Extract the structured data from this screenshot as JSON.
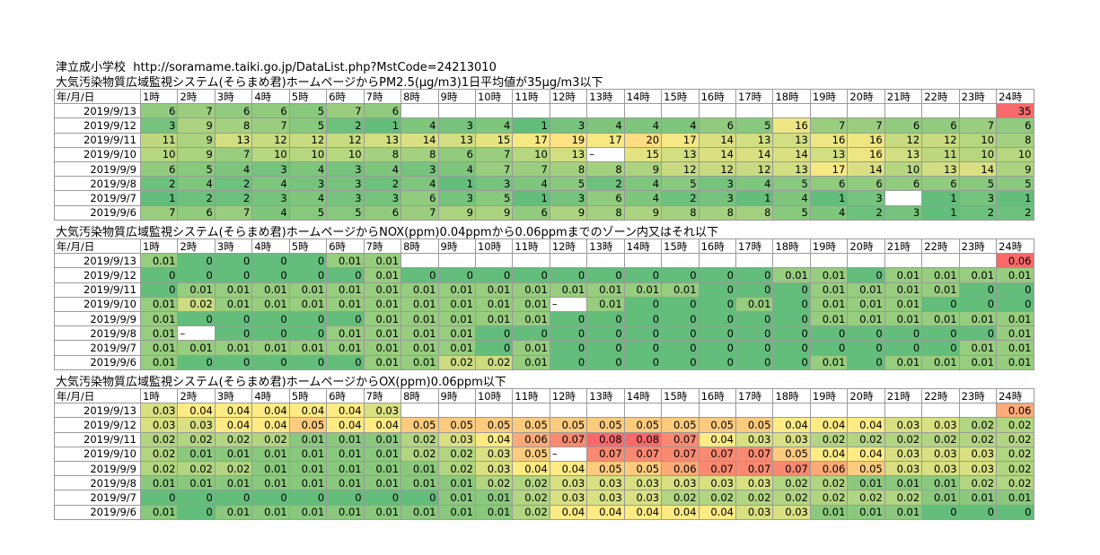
{
  "header": {
    "school": "津立成小学校",
    "url": "http://soramame.taiki.go.jp/DataList.php?MstCode=24213010"
  },
  "columns": {
    "date_header": "年/月/日",
    "hours": [
      "1時",
      "2時",
      "3時",
      "4時",
      "5時",
      "6時",
      "7時",
      "8時",
      "9時",
      "10時",
      "11時",
      "12時",
      "13時",
      "14時",
      "15時",
      "16時",
      "17時",
      "18時",
      "19時",
      "20時",
      "21時",
      "22時",
      "23時",
      "24時"
    ]
  },
  "sections": [
    {
      "title": "大気汚染物質広域監視システム(そらまめ君)ホームページからPM2.5(μg/m3)1日平均値が35μg/m3以下",
      "kind": "pm25",
      "rows": [
        {
          "date": "2019/9/13",
          "values": [
            "6",
            "7",
            "6",
            "6",
            "5",
            "7",
            "6",
            "",
            "",
            "",
            "",
            "",
            "",
            "",
            "",
            "",
            "",
            "",
            "",
            "",
            "",
            "",
            "",
            "35"
          ]
        },
        {
          "date": "2019/9/12",
          "values": [
            "3",
            "9",
            "8",
            "7",
            "5",
            "2",
            "1",
            "4",
            "3",
            "4",
            "1",
            "3",
            "4",
            "4",
            "4",
            "6",
            "5",
            "16",
            "7",
            "7",
            "6",
            "6",
            "7",
            "6"
          ]
        },
        {
          "date": "2019/9/11",
          "values": [
            "11",
            "9",
            "13",
            "12",
            "12",
            "12",
            "13",
            "14",
            "13",
            "15",
            "17",
            "19",
            "17",
            "20",
            "17",
            "14",
            "13",
            "13",
            "16",
            "16",
            "12",
            "12",
            "10",
            "8"
          ]
        },
        {
          "date": "2019/9/10",
          "values": [
            "10",
            "9",
            "7",
            "10",
            "10",
            "10",
            "8",
            "8",
            "6",
            "7",
            "10",
            "13",
            "–",
            "15",
            "13",
            "14",
            "14",
            "14",
            "13",
            "16",
            "13",
            "11",
            "10",
            "10"
          ]
        },
        {
          "date": "2019/9/9",
          "values": [
            "6",
            "5",
            "4",
            "3",
            "4",
            "3",
            "4",
            "3",
            "4",
            "7",
            "7",
            "8",
            "8",
            "9",
            "12",
            "12",
            "12",
            "13",
            "17",
            "14",
            "10",
            "13",
            "14",
            "9"
          ]
        },
        {
          "date": "2019/9/8",
          "values": [
            "2",
            "4",
            "2",
            "4",
            "3",
            "3",
            "2",
            "4",
            "1",
            "3",
            "4",
            "5",
            "2",
            "4",
            "5",
            "3",
            "4",
            "5",
            "6",
            "6",
            "6",
            "6",
            "5",
            "5"
          ]
        },
        {
          "date": "2019/9/7",
          "values": [
            "1",
            "2",
            "2",
            "3",
            "4",
            "3",
            "3",
            "6",
            "3",
            "5",
            "1",
            "3",
            "6",
            "4",
            "2",
            "3",
            "1",
            "4",
            "1",
            "3",
            "",
            "1",
            "3",
            "1"
          ]
        },
        {
          "date": "2019/9/6",
          "values": [
            "7",
            "6",
            "7",
            "4",
            "5",
            "5",
            "6",
            "7",
            "9",
            "9",
            "6",
            "9",
            "8",
            "9",
            "8",
            "8",
            "8",
            "5",
            "4",
            "2",
            "3",
            "1",
            "2",
            "2"
          ]
        }
      ]
    },
    {
      "title": "大気汚染物質広域監視システム(そらまめ君)ホームページからNOX(ppm)0.04ppmから0.06ppmまでのゾーン内又はそれ以下",
      "kind": "nox",
      "rows": [
        {
          "date": "2019/9/13",
          "values": [
            "0.01",
            "0",
            "0",
            "0",
            "0",
            "0.01",
            "0.01",
            "",
            "",
            "",
            "",
            "",
            "",
            "",
            "",
            "",
            "",
            "",
            "",
            "",
            "",
            "",
            "",
            "0.06"
          ]
        },
        {
          "date": "2019/9/12",
          "values": [
            "0",
            "0",
            "0",
            "0",
            "0",
            "0",
            "0.01",
            "0",
            "0",
            "0",
            "0",
            "0",
            "0",
            "0",
            "0",
            "0",
            "0",
            "0.01",
            "0.01",
            "0",
            "0.01",
            "0.01",
            "0.01",
            "0.01"
          ]
        },
        {
          "date": "2019/9/11",
          "values": [
            "0",
            "0.01",
            "0.01",
            "0.01",
            "0.01",
            "0.01",
            "0.01",
            "0.01",
            "0.01",
            "0.01",
            "0.01",
            "0.01",
            "0.01",
            "0.01",
            "0.01",
            "0",
            "0",
            "0",
            "0.01",
            "0.01",
            "0.01",
            "0.01",
            "0",
            "0"
          ]
        },
        {
          "date": "2019/9/10",
          "values": [
            "0.01",
            "0.02",
            "0.01",
            "0.01",
            "0.01",
            "0.01",
            "0.01",
            "0.01",
            "0.01",
            "0.01",
            "0.01",
            "–",
            "0.01",
            "0",
            "0",
            "0",
            "0.01",
            "0",
            "0.01",
            "0.01",
            "0.01",
            "0",
            "0",
            "0"
          ]
        },
        {
          "date": "2019/9/9",
          "values": [
            "0.01",
            "0",
            "0",
            "0",
            "0",
            "0",
            "0.01",
            "0.01",
            "0.01",
            "0.01",
            "0.01",
            "0",
            "0",
            "0",
            "0",
            "0",
            "0",
            "0",
            "0.01",
            "0.01",
            "0.01",
            "0.01",
            "0.01",
            "0.01"
          ]
        },
        {
          "date": "2019/9/8",
          "values": [
            "0.01",
            "–",
            "0",
            "0",
            "0",
            "0.01",
            "0.01",
            "0.01",
            "0.01",
            "0",
            "0",
            "0",
            "0",
            "0",
            "0",
            "0",
            "0",
            "0",
            "0",
            "0",
            "0",
            "0",
            "0",
            "0.01"
          ]
        },
        {
          "date": "2019/9/7",
          "values": [
            "0.01",
            "0.01",
            "0.01",
            "0.01",
            "0.01",
            "0.01",
            "0.01",
            "0.01",
            "0.01",
            "0",
            "0.01",
            "0",
            "0",
            "0",
            "0",
            "0",
            "0",
            "0",
            "0",
            "0",
            "0",
            "0",
            "0.01",
            "0.01"
          ]
        },
        {
          "date": "2019/9/6",
          "values": [
            "0.01",
            "0",
            "0",
            "0",
            "0",
            "0",
            "0.01",
            "0.01",
            "0.02",
            "0.02",
            "0.01",
            "0",
            "0",
            "0",
            "0",
            "0",
            "0",
            "0",
            "0.01",
            "0",
            "0.01",
            "0.01",
            "0.01",
            "0.01"
          ]
        }
      ]
    },
    {
      "title": "大気汚染物質広域監視システム(そらまめ君)ホームページからOX(ppm)0.06ppm以下",
      "kind": "ox",
      "rows": [
        {
          "date": "2019/9/13",
          "values": [
            "0.03",
            "0.04",
            "0.04",
            "0.04",
            "0.04",
            "0.04",
            "0.03",
            "",
            "",
            "",
            "",
            "",
            "",
            "",
            "",
            "",
            "",
            "",
            "",
            "",
            "",
            "",
            "",
            "0.06"
          ]
        },
        {
          "date": "2019/9/12",
          "values": [
            "0.03",
            "0.03",
            "0.04",
            "0.04",
            "0.05",
            "0.04",
            "0.04",
            "0.05",
            "0.05",
            "0.05",
            "0.05",
            "0.05",
            "0.05",
            "0.05",
            "0.05",
            "0.05",
            "0.05",
            "0.04",
            "0.04",
            "0.04",
            "0.03",
            "0.03",
            "0.02",
            "0.02"
          ]
        },
        {
          "date": "2019/9/11",
          "values": [
            "0.02",
            "0.02",
            "0.02",
            "0.02",
            "0.01",
            "0.01",
            "0.01",
            "0.02",
            "0.03",
            "0.04",
            "0.06",
            "0.07",
            "0.08",
            "0.08",
            "0.07",
            "0.04",
            "0.03",
            "0.03",
            "0.02",
            "0.02",
            "0.02",
            "0.02",
            "0.02",
            "0.02"
          ]
        },
        {
          "date": "2019/9/10",
          "values": [
            "0.02",
            "0.01",
            "0.01",
            "0.01",
            "0.01",
            "0.01",
            "0.01",
            "0.02",
            "0.02",
            "0.03",
            "0.05",
            "–",
            "0.07",
            "0.07",
            "0.07",
            "0.07",
            "0.07",
            "0.05",
            "0.04",
            "0.04",
            "0.03",
            "0.03",
            "0.03",
            "0.02"
          ]
        },
        {
          "date": "2019/9/9",
          "values": [
            "0.02",
            "0.02",
            "0.02",
            "0.01",
            "0.01",
            "0.01",
            "0.01",
            "0.01",
            "0.02",
            "0.03",
            "0.04",
            "0.04",
            "0.05",
            "0.05",
            "0.06",
            "0.07",
            "0.07",
            "0.07",
            "0.06",
            "0.05",
            "0.03",
            "0.03",
            "0.03",
            "0.02"
          ]
        },
        {
          "date": "2019/9/8",
          "values": [
            "0.01",
            "0.01",
            "0.01",
            "0.01",
            "0.01",
            "0.01",
            "0.01",
            "0.01",
            "0.01",
            "0.02",
            "0.02",
            "0.03",
            "0.03",
            "0.03",
            "0.03",
            "0.03",
            "0.03",
            "0.02",
            "0.02",
            "0.01",
            "0.01",
            "0.01",
            "0.02",
            "0.02"
          ]
        },
        {
          "date": "2019/9/7",
          "values": [
            "0",
            "0",
            "0",
            "0",
            "0",
            "0",
            "0",
            "0",
            "0.01",
            "0.01",
            "0.02",
            "0.03",
            "0.03",
            "0.03",
            "0.02",
            "0.02",
            "0.02",
            "0.02",
            "0.02",
            "0.02",
            "0.02",
            "0.01",
            "0.01",
            "0.01"
          ]
        },
        {
          "date": "2019/9/6",
          "values": [
            "0.01",
            "0",
            "0.01",
            "0.01",
            "0.01",
            "0.01",
            "0.01",
            "0.01",
            "0.01",
            "0.01",
            "0.02",
            "0.04",
            "0.04",
            "0.04",
            "0.04",
            "0.04",
            "0.03",
            "0.03",
            "0.01",
            "0.01",
            "0.01",
            "0",
            "0",
            "0"
          ]
        }
      ]
    }
  ],
  "colors": {
    "scale_low": "#63be7b",
    "scale_mid": "#ffeb84",
    "scale_high": "#f8696b",
    "grid_line": "#9a9a9a"
  }
}
